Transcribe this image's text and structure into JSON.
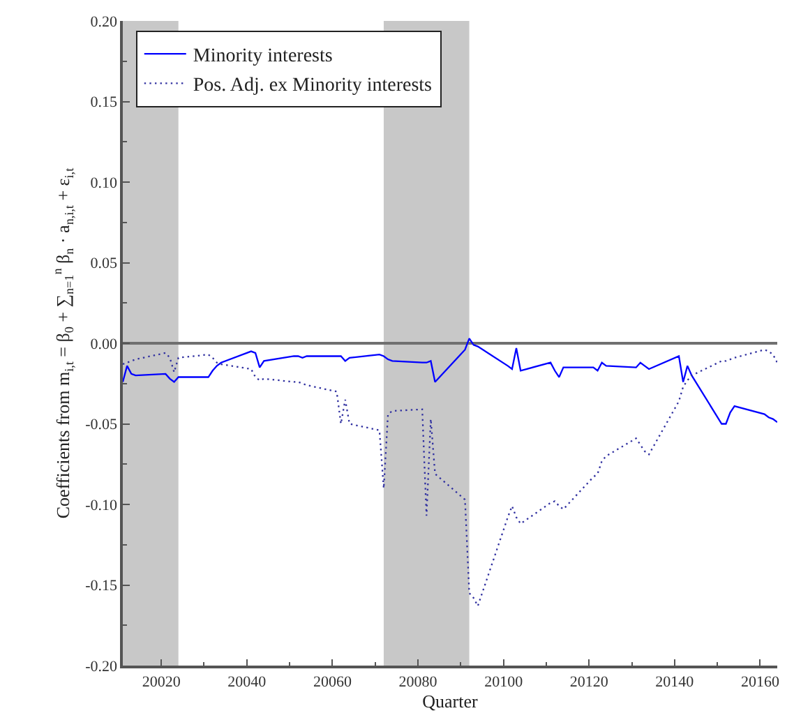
{
  "chart_data": {
    "type": "line",
    "xlabel": "Quarter",
    "ylabel": "Coefficients from m$_{i,t}$ = β$_{0}$ + ∑$_{n=1}$$^{n}$ β$_{n}$ · a$_{n,i,t}$ + ε$_{i,t}$",
    "x": [
      20011,
      20012,
      20013,
      20014,
      20021,
      20022,
      20023,
      20024,
      20031,
      20032,
      20033,
      20034,
      20041,
      20042,
      20043,
      20044,
      20051,
      20052,
      20053,
      20054,
      20061,
      20062,
      20063,
      20064,
      20071,
      20072,
      20073,
      20074,
      20081,
      20082,
      20083,
      20084,
      20091,
      20092,
      20093,
      20094,
      20101,
      20102,
      20103,
      20104,
      20111,
      20112,
      20113,
      20114,
      20121,
      20122,
      20123,
      20124,
      20131,
      20132,
      20133,
      20134,
      20141,
      20142,
      20143,
      20144,
      20151,
      20152,
      20153,
      20154,
      20161,
      20162,
      20163,
      20164
    ],
    "series": [
      {
        "name": "Minority interests",
        "color": "#0000ff",
        "line_style": "solid",
        "values": [
          -0.024,
          -0.014,
          -0.019,
          -0.02,
          -0.019,
          -0.022,
          -0.024,
          -0.021,
          -0.021,
          -0.017,
          -0.014,
          -0.012,
          -0.005,
          -0.006,
          -0.015,
          -0.011,
          -0.008,
          -0.008,
          -0.009,
          -0.008,
          -0.008,
          -0.008,
          -0.011,
          -0.009,
          -0.007,
          -0.008,
          -0.01,
          -0.011,
          -0.012,
          -0.012,
          -0.011,
          -0.024,
          -0.004,
          0.003,
          -0.001,
          -0.002,
          -0.014,
          -0.016,
          -0.003,
          -0.017,
          -0.012,
          -0.017,
          -0.021,
          -0.015,
          -0.015,
          -0.017,
          -0.012,
          -0.014,
          -0.015,
          -0.012,
          -0.014,
          -0.016,
          -0.008,
          -0.024,
          -0.014,
          -0.02,
          -0.05,
          -0.05,
          -0.043,
          -0.039,
          -0.044,
          -0.046,
          -0.047,
          -0.049
        ]
      },
      {
        "name": "Pos. Adj. ex Minority interests",
        "color": "#3030a0",
        "line_style": "dotted",
        "values": [
          -0.013,
          -0.012,
          -0.011,
          -0.01,
          -0.006,
          -0.009,
          -0.018,
          -0.009,
          -0.007,
          -0.009,
          -0.012,
          -0.013,
          -0.016,
          -0.021,
          -0.023,
          -0.022,
          -0.024,
          -0.024,
          -0.025,
          -0.026,
          -0.03,
          -0.05,
          -0.035,
          -0.05,
          -0.054,
          -0.09,
          -0.044,
          -0.042,
          -0.041,
          -0.107,
          -0.047,
          -0.081,
          -0.097,
          -0.155,
          -0.158,
          -0.163,
          -0.108,
          -0.101,
          -0.108,
          -0.112,
          -0.099,
          -0.098,
          -0.101,
          -0.103,
          -0.083,
          -0.081,
          -0.073,
          -0.07,
          -0.059,
          -0.063,
          -0.067,
          -0.069,
          -0.036,
          -0.027,
          -0.023,
          -0.02,
          -0.011,
          -0.011,
          -0.01,
          -0.009,
          -0.004,
          -0.005,
          -0.007,
          -0.012
        ]
      }
    ],
    "xlim": [
      20011,
      20164
    ],
    "ylim": [
      -0.2,
      0.2
    ],
    "xticks": [
      20020,
      {
        "value": 20030,
        "label": null
      },
      20040,
      {
        "value": 20050,
        "label": null
      },
      20060,
      {
        "value": 20070,
        "label": null
      },
      20080,
      {
        "value": 20090,
        "label": null
      },
      20100,
      {
        "value": 20110,
        "label": null
      },
      20120,
      {
        "value": 20130,
        "label": null
      },
      20140,
      {
        "value": 20150,
        "label": null
      },
      20160
    ],
    "yticks": [
      {
        "value": -0.2,
        "label": "-0.20"
      },
      {
        "value": -0.175,
        "label": null
      },
      {
        "value": -0.15,
        "label": "-0.15"
      },
      {
        "value": -0.125,
        "label": null
      },
      {
        "value": -0.1,
        "label": "-0.10"
      },
      {
        "value": -0.075,
        "label": null
      },
      {
        "value": -0.05,
        "label": "-0.05"
      },
      {
        "value": -0.025,
        "label": null
      },
      {
        "value": 0,
        "label": "0.00"
      },
      {
        "value": 0.025,
        "label": null
      },
      {
        "value": 0.05,
        "label": "0.05"
      },
      {
        "value": 0.075,
        "label": null
      },
      {
        "value": 0.1,
        "label": "0.10"
      },
      {
        "value": 0.125,
        "label": null
      },
      {
        "value": 0.15,
        "label": "0.15"
      },
      {
        "value": 0.175,
        "label": null
      },
      {
        "value": 0.2,
        "label": "0.20"
      }
    ],
    "ref_lines": [
      {
        "axis": "y",
        "value": 0,
        "color": "#707070"
      }
    ],
    "bands": [
      {
        "axis": "x",
        "from": 20011,
        "to": 20024,
        "color": "#c8c8c8"
      },
      {
        "axis": "x",
        "from": 20072,
        "to": 20092,
        "color": "#c8c8c8"
      }
    ],
    "legend": "top left"
  }
}
